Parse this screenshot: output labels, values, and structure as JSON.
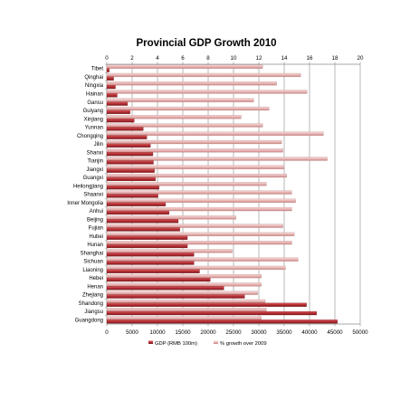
{
  "chart_data": {
    "type": "bar",
    "orientation": "horizontal",
    "title": "Provincial GDP Growth 2010",
    "categories": [
      "Tibet",
      "Qinghai",
      "Ningxia",
      "Hainan",
      "Gansu",
      "Guiyang",
      "Xinjiang",
      "Yunnan",
      "Chongqing",
      "Jilin",
      "Shanxi",
      "Tianjin",
      "Jiangxi",
      "Guangxi",
      "Heilongjiang",
      "Shaanxi",
      "Inner Mongolia",
      "Anhui",
      "Beijing",
      "Fujian",
      "Hubei",
      "Hunan",
      "Shanghai",
      "Sichuan",
      "Liaoning",
      "Hebei",
      "Henan",
      "Zhejiang",
      "Shandong",
      "Jiangsu",
      "Guangdong"
    ],
    "series": [
      {
        "name": "GDP (RMB 100m)",
        "axis": "bottom",
        "color": "#b83236",
        "values": [
          500,
          1350,
          1700,
          2050,
          4100,
          4600,
          5400,
          7200,
          7900,
          8600,
          9100,
          9200,
          9400,
          9600,
          10300,
          10100,
          11600,
          12300,
          14100,
          14400,
          15900,
          15900,
          17200,
          17200,
          18300,
          20400,
          23100,
          27200,
          39400,
          41400,
          45500
        ]
      },
      {
        "name": "% growth over 2009",
        "axis": "top",
        "color": "#e3b5b4",
        "values": [
          12.3,
          15.3,
          13.4,
          15.8,
          11.6,
          12.8,
          10.6,
          12.3,
          17.1,
          13.8,
          13.9,
          17.4,
          14.0,
          14.2,
          12.6,
          14.6,
          14.9,
          14.6,
          10.2,
          13.9,
          14.8,
          14.6,
          9.9,
          15.1,
          14.1,
          12.2,
          12.2,
          11.9,
          12.5,
          12.6,
          12.2
        ]
      }
    ],
    "x_top_ticks": [
      0,
      2,
      4,
      6,
      8,
      10,
      12,
      14,
      16,
      18,
      20
    ],
    "x_top_lim": [
      0,
      20
    ],
    "x_bottom_ticks": [
      0,
      5000,
      10000,
      15000,
      20000,
      25000,
      30000,
      35000,
      40000,
      45000,
      50000
    ],
    "x_bottom_lim": [
      0,
      50000
    ],
    "grid": true,
    "legend_position": "bottom"
  }
}
